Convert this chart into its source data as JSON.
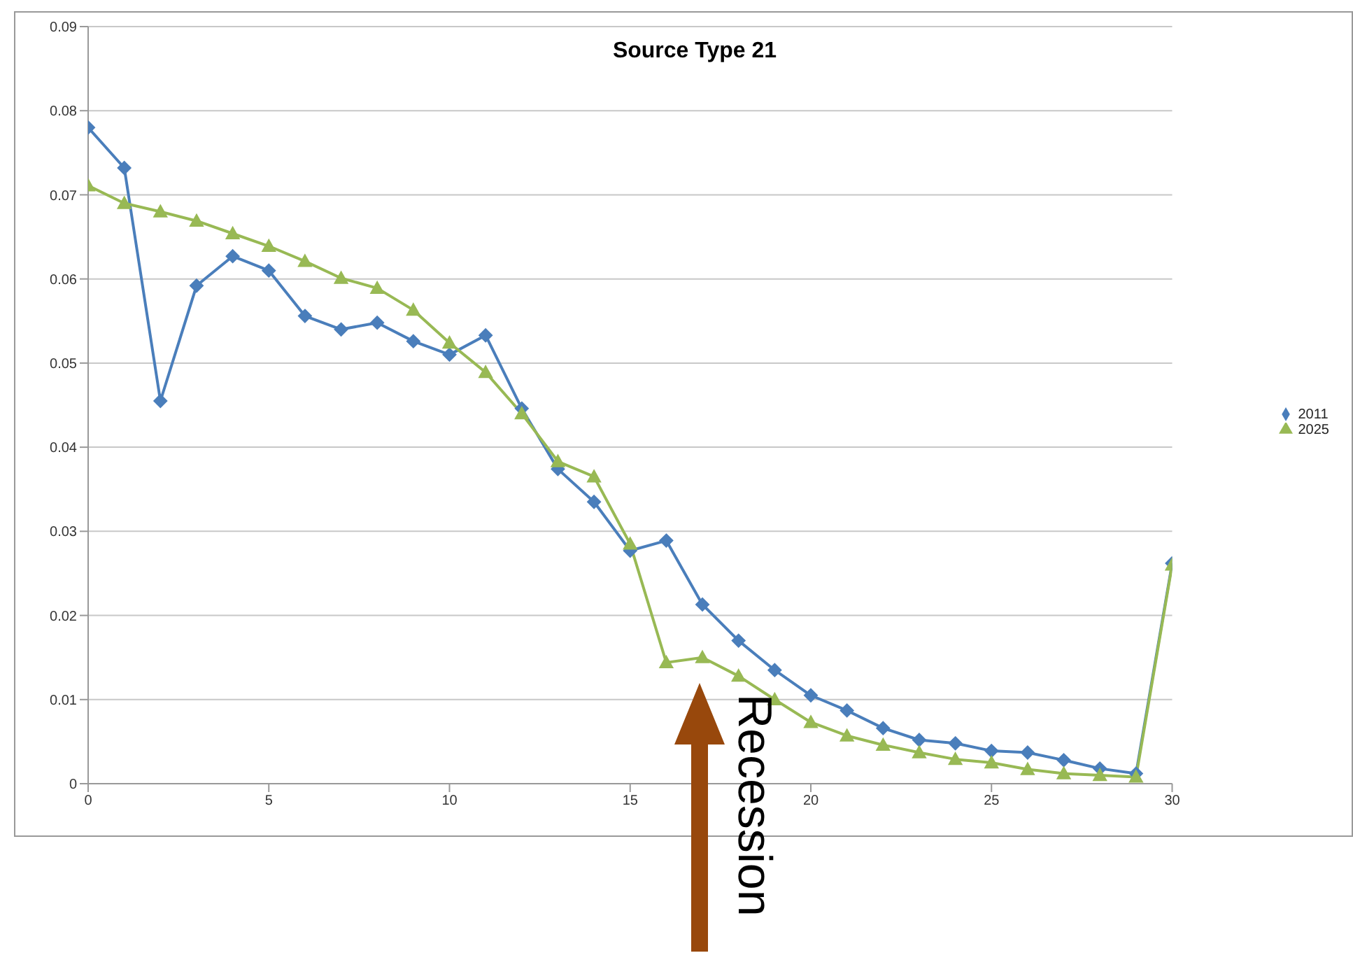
{
  "chart_data": {
    "type": "line",
    "title": "Source Type 21",
    "x": [
      0,
      1,
      2,
      3,
      4,
      5,
      6,
      7,
      8,
      9,
      10,
      11,
      12,
      13,
      14,
      15,
      16,
      17,
      18,
      19,
      20,
      21,
      22,
      23,
      24,
      25,
      26,
      27,
      28,
      29,
      30
    ],
    "series": [
      {
        "name": "2011",
        "color": "#4a7ebb",
        "marker": "diamond",
        "values": [
          0.078,
          0.0732,
          0.0455,
          0.0592,
          0.0627,
          0.061,
          0.0556,
          0.054,
          0.0548,
          0.0526,
          0.051,
          0.0533,
          0.0446,
          0.0374,
          0.0335,
          0.0277,
          0.0289,
          0.0213,
          0.017,
          0.0135,
          0.0105,
          0.0087,
          0.0066,
          0.0052,
          0.0048,
          0.0039,
          0.0037,
          0.0028,
          0.0018,
          0.0012,
          0.0262
        ]
      },
      {
        "name": "2025",
        "color": "#98b954",
        "marker": "triangle",
        "values": [
          0.0711,
          0.069,
          0.068,
          0.0669,
          0.0654,
          0.0639,
          0.0621,
          0.0601,
          0.0589,
          0.0563,
          0.0524,
          0.0489,
          0.044,
          0.0383,
          0.0365,
          0.0285,
          0.0144,
          0.015,
          0.0128,
          0.01,
          0.0073,
          0.0057,
          0.0046,
          0.0037,
          0.0029,
          0.0025,
          0.0017,
          0.0012,
          0.001,
          0.0008,
          0.026
        ]
      }
    ],
    "xlim": [
      0,
      30
    ],
    "xticks": [
      0,
      5,
      10,
      15,
      20,
      25,
      30
    ],
    "ylim": [
      0,
      0.09
    ],
    "yticks": [
      0,
      0.01,
      0.02,
      0.03,
      0.04,
      0.05,
      0.06,
      0.07,
      0.08,
      0.09
    ],
    "grid": "y",
    "legend": "right",
    "line_style": "solid",
    "annotations": [
      "Recession"
    ]
  }
}
